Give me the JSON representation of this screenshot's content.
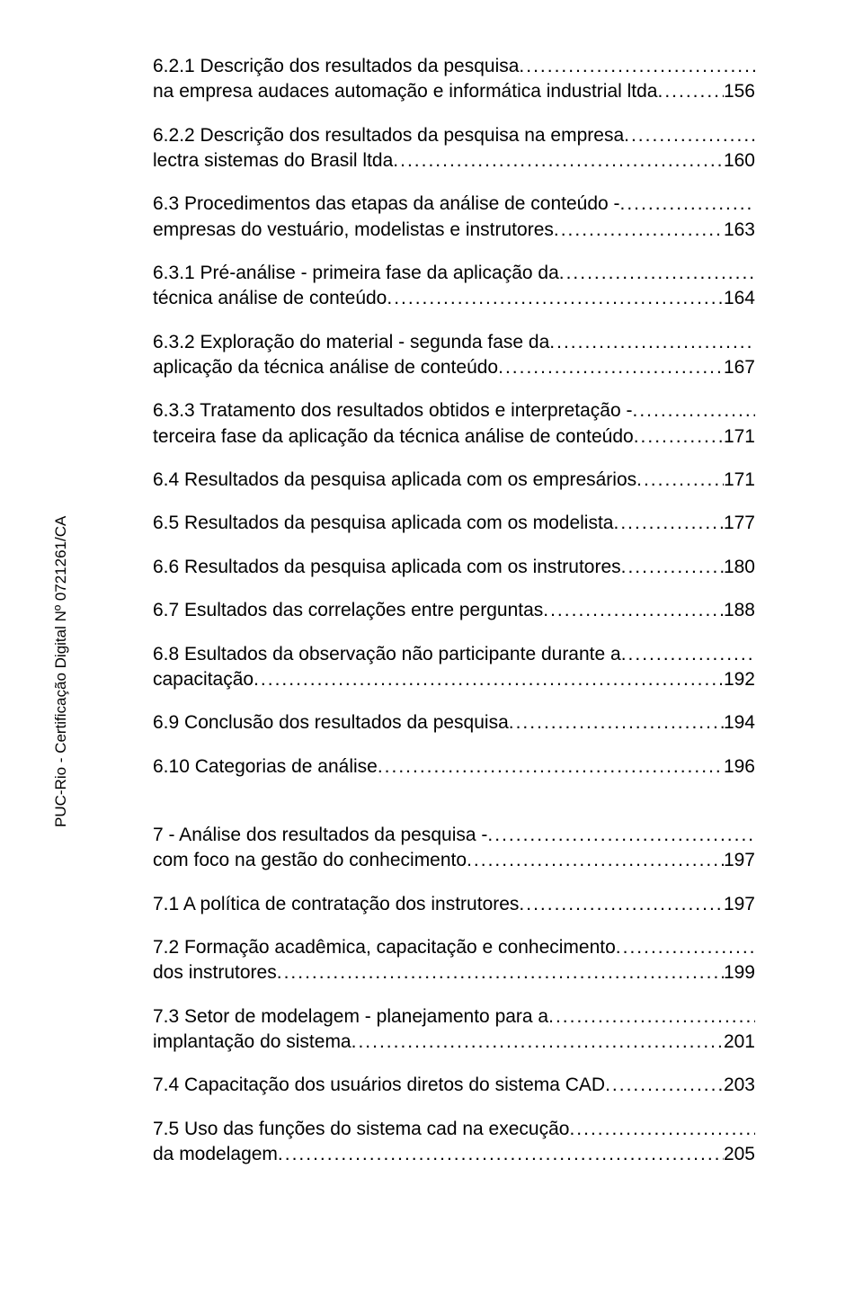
{
  "sidebar": {
    "certification": "PUC-Rio - Certificação Digital Nº 0721261/CA"
  },
  "toc": [
    {
      "lines": [
        "6.2.1 Descrição dos resultados da pesquisa",
        "na empresa audaces automação e informática industrial ltda"
      ],
      "page": "156"
    },
    {
      "lines": [
        "6.2.2 Descrição dos resultados da pesquisa na empresa",
        "lectra sistemas do Brasil ltda"
      ],
      "page": "160"
    },
    {
      "lines": [
        "6.3 Procedimentos das etapas da análise de conteúdo -",
        "empresas do vestuário, modelistas e instrutores"
      ],
      "page": "163"
    },
    {
      "lines": [
        "6.3.1 Pré-análise - primeira fase da aplicação da",
        "técnica análise de conteúdo"
      ],
      "page": "164"
    },
    {
      "lines": [
        "6.3.2 Exploração do material - segunda fase da",
        "aplicação da técnica análise de conteúdo"
      ],
      "page": "167"
    },
    {
      "lines": [
        "6.3.3 Tratamento dos resultados obtidos e interpretação -",
        "terceira fase da aplicação da técnica análise de conteúdo"
      ],
      "page": "171"
    },
    {
      "lines": [
        "6.4 Resultados da pesquisa aplicada com os empresários"
      ],
      "page": "171"
    },
    {
      "lines": [
        "6.5 Resultados da pesquisa aplicada com os modelista"
      ],
      "page": "177"
    },
    {
      "lines": [
        "6.6 Resultados da pesquisa aplicada com os instrutores"
      ],
      "page": "180"
    },
    {
      "lines": [
        "6.7 Esultados das correlações entre perguntas"
      ],
      "page": "188"
    },
    {
      "lines": [
        "6.8 Esultados da observação não participante durante a",
        "capacitação"
      ],
      "page": "192"
    },
    {
      "lines": [
        "6.9 Conclusão dos resultados da pesquisa"
      ],
      "page": "194"
    },
    {
      "lines": [
        "6.10 Categorias de análise"
      ],
      "page": "196"
    },
    {
      "gap": true
    },
    {
      "lines": [
        "7 - Análise dos resultados da pesquisa -",
        "com foco na gestão do conhecimento"
      ],
      "page": "197"
    },
    {
      "lines": [
        "7.1 A política de contratação dos instrutores"
      ],
      "page": "197"
    },
    {
      "lines": [
        "7.2 Formação acadêmica, capacitação e conhecimento",
        "dos instrutores"
      ],
      "page": "199"
    },
    {
      "lines": [
        "7.3 Setor de modelagem - planejamento para a",
        "implantação do sistema"
      ],
      "page": "201"
    },
    {
      "lines": [
        "7.4 Capacitação dos usuários diretos do sistema CAD"
      ],
      "page": "203"
    },
    {
      "lines": [
        "7.5 Uso das funções do sistema cad na execução",
        "da modelagem"
      ],
      "page": "205"
    }
  ]
}
